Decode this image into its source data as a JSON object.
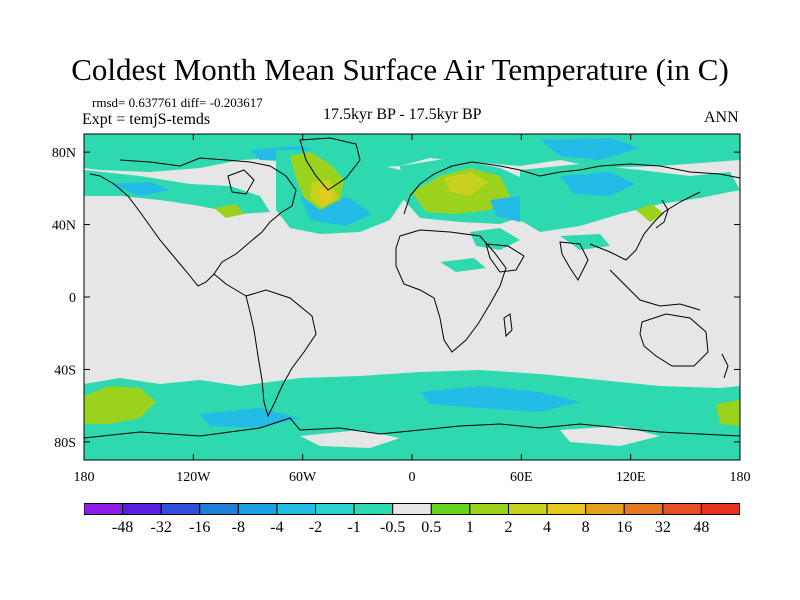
{
  "header": {
    "title": "Coldest Month Mean Surface Air Temperature (in C)",
    "stats": "rmsd= 0.637761 diff= -0.203617",
    "experiment": "Expt = temjS-temds",
    "period": "17.5kyr BP - 17.5kyr BP",
    "season": "ANN"
  },
  "map": {
    "projection": "cylindrical equidistant",
    "lon_range": [
      -180,
      180
    ],
    "lat_range": [
      -90,
      90
    ],
    "lat_ticks": [
      {
        "label": "80N",
        "value": 80
      },
      {
        "label": "40N",
        "value": 40
      },
      {
        "label": "0",
        "value": 0
      },
      {
        "label": "40S",
        "value": -40
      },
      {
        "label": "80S",
        "value": -80
      }
    ],
    "lon_ticks": [
      {
        "label": "180",
        "value": -180
      },
      {
        "label": "120W",
        "value": -120
      },
      {
        "label": "60W",
        "value": -60
      },
      {
        "label": "0",
        "value": 0
      },
      {
        "label": "60E",
        "value": 60
      },
      {
        "label": "120E",
        "value": 120
      },
      {
        "label": "180",
        "value": 180
      }
    ],
    "background_color": "#e6e6e6"
  },
  "colorbar": {
    "colors": [
      "#8c1ce6",
      "#5a1ee0",
      "#2f4fd8",
      "#1e7fd8",
      "#1ea0e6",
      "#24bce6",
      "#2cd1d1",
      "#2fd9b0",
      "#e6e6e6",
      "#64d21e",
      "#9bd21e",
      "#c8d21e",
      "#e6c81e",
      "#e6a01e",
      "#e6781e",
      "#e6501e",
      "#e6321e"
    ],
    "labels": [
      "-48",
      "-32",
      "-16",
      "-8",
      "-4",
      "-2",
      "-1",
      "-0.5",
      "0.5",
      "1",
      "2",
      "4",
      "8",
      "16",
      "32",
      "48"
    ]
  },
  "chart_data": {
    "type": "heatmap",
    "title": "Coldest Month Mean Surface Air Temperature (in C)",
    "units": "C",
    "xlabel": "",
    "ylabel": "",
    "xlim": [
      -180,
      180
    ],
    "ylim": [
      -90,
      90
    ],
    "x_ticks": [
      "180",
      "120W",
      "60W",
      "0",
      "60E",
      "120E",
      "180"
    ],
    "y_ticks": [
      "80N",
      "40N",
      "0",
      "40S",
      "80S"
    ],
    "contour_levels": [
      -48,
      -32,
      -16,
      -8,
      -4,
      -2,
      -1,
      -0.5,
      0.5,
      1,
      2,
      4,
      8,
      16,
      32,
      48
    ],
    "rmsd": 0.637761,
    "diff": -0.203617
  }
}
